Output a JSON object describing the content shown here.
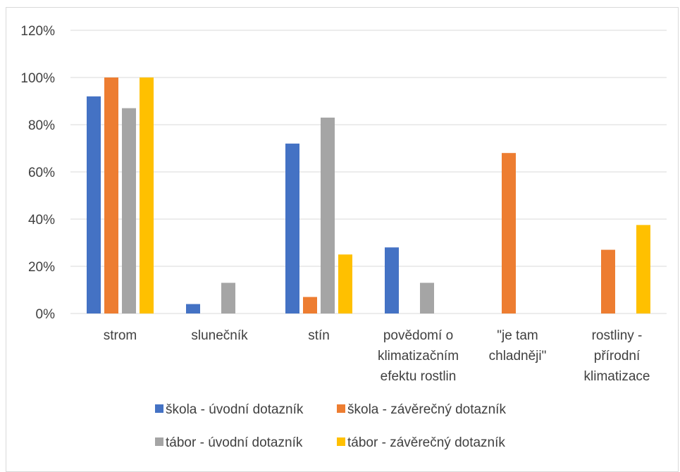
{
  "chart_data": {
    "type": "bar",
    "categories": [
      [
        "strom"
      ],
      [
        "slunečník"
      ],
      [
        "stín"
      ],
      [
        "povědomí o",
        "klimatizačním",
        "efektu rostlin"
      ],
      [
        "\"je tam",
        "chladněji\""
      ],
      [
        "rostliny -",
        "přírodní",
        "klimatizace"
      ]
    ],
    "series": [
      {
        "name": "škola - úvodní dotazník",
        "color": "#4472c4",
        "values": [
          0.92,
          0.04,
          0.72,
          0.28,
          0,
          0
        ]
      },
      {
        "name": "škola - závěrečný dotazník",
        "color": "#ed7d31",
        "values": [
          1.0,
          0,
          0.07,
          0,
          0.68,
          0.27
        ]
      },
      {
        "name": "tábor - úvodní dotazník",
        "color": "#a5a5a5",
        "values": [
          0.87,
          0.13,
          0.83,
          0.13,
          0,
          0
        ]
      },
      {
        "name": "tábor - závěrečný dotazník",
        "color": "#ffc000",
        "values": [
          1.0,
          0,
          0.25,
          0,
          0,
          0.375
        ]
      }
    ],
    "y_ticks": [
      "0%",
      "20%",
      "40%",
      "60%",
      "80%",
      "100%",
      "120%"
    ],
    "ylim": [
      0,
      1.2
    ],
    "grid": true,
    "gridline_color": "#d9d9d9",
    "legend_placement": "bottom"
  }
}
